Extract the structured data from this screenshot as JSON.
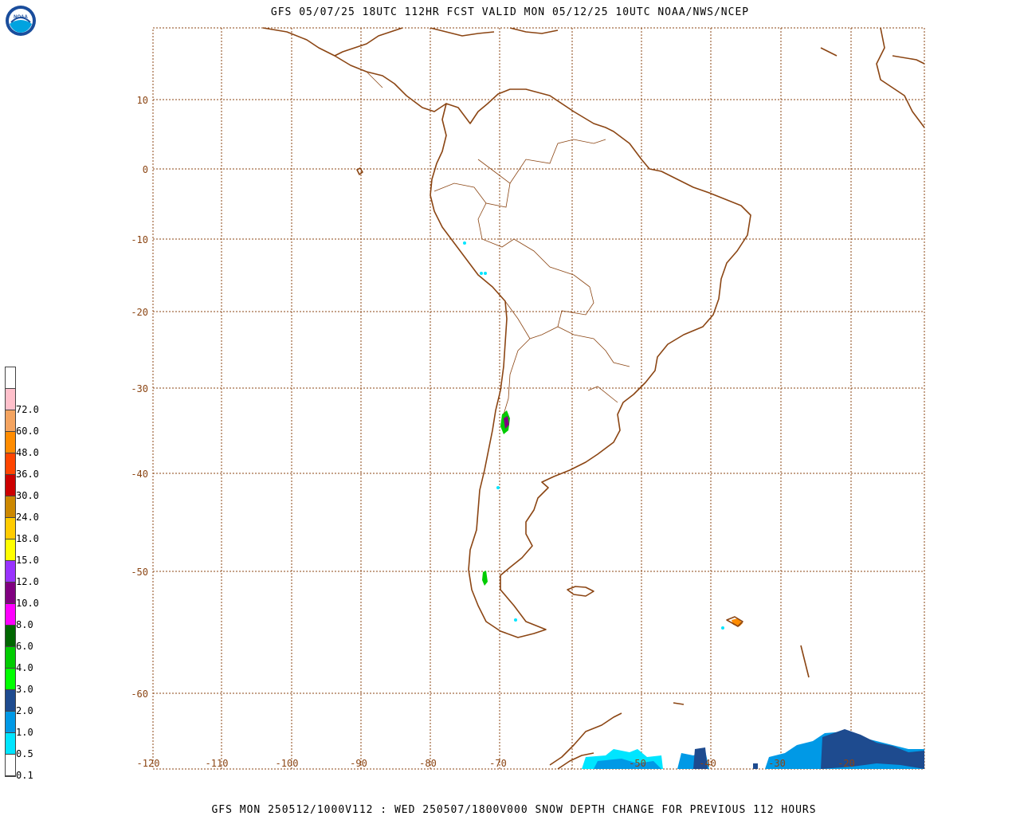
{
  "title": "GFS 05/07/25 18UTC 112HR FCST VALID MON 05/12/25 10UTC NOAA/NWS/NCEP",
  "footer": "GFS MON 250512/1000V112 : WED 250507/1800V000 SNOW DEPTH CHANGE FOR PREVIOUS 112 HOURS",
  "logo": {
    "text": "NOAA",
    "icon": "noaa-logo-icon"
  },
  "latitude_labels": [
    "10",
    "0",
    "-10",
    "-20",
    "-30",
    "-40",
    "-50",
    "-60"
  ],
  "longitude_labels": [
    "-120",
    "-110",
    "-100",
    "-90",
    "-80",
    "-70",
    "-50",
    "-40",
    "-30",
    "-20"
  ],
  "legend": [
    {
      "label": "",
      "color": "#ffffff"
    },
    {
      "label": "72.0",
      "color": "#ffc0cb"
    },
    {
      "label": "60.0",
      "color": "#f4a460"
    },
    {
      "label": "48.0",
      "color": "#ff8c00"
    },
    {
      "label": "36.0",
      "color": "#ff4500"
    },
    {
      "label": "30.0",
      "color": "#cc0000"
    },
    {
      "label": "24.0",
      "color": "#cc8800"
    },
    {
      "label": "18.0",
      "color": "#ffcc00"
    },
    {
      "label": "15.0",
      "color": "#ffff00"
    },
    {
      "label": "12.0",
      "color": "#9933ff"
    },
    {
      "label": "10.0",
      "color": "#800080"
    },
    {
      "label": "8.0",
      "color": "#ff00ff"
    },
    {
      "label": "6.0",
      "color": "#006600"
    },
    {
      "label": "4.0",
      "color": "#00cc00"
    },
    {
      "label": "3.0",
      "color": "#00ff00"
    },
    {
      "label": "2.0",
      "color": "#1e4b8f"
    },
    {
      "label": "1.0",
      "color": "#0099e6"
    },
    {
      "label": "0.5",
      "color": "#00e5ff"
    },
    {
      "label": "0.1",
      "color": "#ffffff"
    }
  ],
  "colors": {
    "coastline": "#8b4513",
    "grid": "#8b4513"
  }
}
